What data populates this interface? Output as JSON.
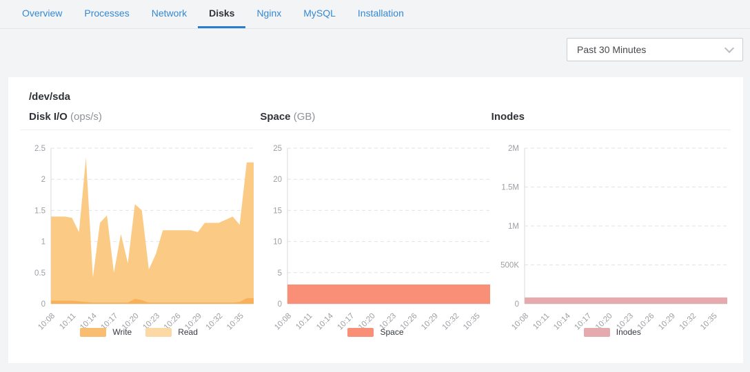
{
  "tabs": {
    "items": [
      {
        "label": "Overview",
        "active": false
      },
      {
        "label": "Processes",
        "active": false
      },
      {
        "label": "Network",
        "active": false
      },
      {
        "label": "Disks",
        "active": true
      },
      {
        "label": "Nginx",
        "active": false
      },
      {
        "label": "MySQL",
        "active": false
      },
      {
        "label": "Installation",
        "active": false
      }
    ]
  },
  "toolbar": {
    "time_range_selected": "Past 30 Minutes"
  },
  "panel": {
    "device_title": "/dev/sda"
  },
  "colors": {
    "tab_link": "#3488d1",
    "tab_active_underline": "#2a7dd1",
    "axis_line": "#d6d9dc",
    "grid_line": "#e0e2e5",
    "tick_text": "#9b9ea3",
    "page_background": "#f3f4f6",
    "card_background": "#ffffff"
  },
  "chart_data": [
    {
      "type": "area",
      "title": "Disk I/O",
      "unit": "(ops/s)",
      "x": [
        "10:08",
        "10:09",
        "10:10",
        "10:11",
        "10:12",
        "10:13",
        "10:14",
        "10:15",
        "10:16",
        "10:17",
        "10:18",
        "10:19",
        "10:20",
        "10:21",
        "10:22",
        "10:23",
        "10:24",
        "10:25",
        "10:26",
        "10:27",
        "10:28",
        "10:29",
        "10:30",
        "10:31",
        "10:32",
        "10:33",
        "10:34",
        "10:35",
        "10:36",
        "10:37"
      ],
      "x_tick_every": 3,
      "ylim": [
        0,
        2.5
      ],
      "yticks": [
        {
          "value": 0,
          "label": "0"
        },
        {
          "value": 0.5,
          "label": "0.5"
        },
        {
          "value": 1,
          "label": "1"
        },
        {
          "value": 1.5,
          "label": "1.5"
        },
        {
          "value": 2,
          "label": "2"
        },
        {
          "value": 2.5,
          "label": "2.5"
        }
      ],
      "series": [
        {
          "name": "Write",
          "color": "#f8b158",
          "legend_color": "#f9bd72",
          "values": [
            0.05,
            0.05,
            0.05,
            0.05,
            0.04,
            0.03,
            0.02,
            0.02,
            0.02,
            0.02,
            0.02,
            0.02,
            0.08,
            0.06,
            0.02,
            0.02,
            0.02,
            0.02,
            0.02,
            0.02,
            0.02,
            0.02,
            0.02,
            0.02,
            0.02,
            0.02,
            0.02,
            0.03,
            0.09,
            0.09
          ]
        },
        {
          "name": "Read",
          "color": "#fbca84",
          "legend_color": "#fcd9a4",
          "values": [
            1.4,
            1.4,
            1.4,
            1.38,
            1.15,
            2.35,
            0.42,
            1.3,
            1.42,
            0.5,
            1.12,
            0.65,
            1.6,
            1.5,
            0.55,
            0.8,
            1.18,
            1.18,
            1.18,
            1.18,
            1.18,
            1.15,
            1.3,
            1.3,
            1.3,
            1.35,
            1.4,
            1.27,
            2.27,
            2.27
          ]
        }
      ]
    },
    {
      "type": "area",
      "title": "Space",
      "unit": "(GB)",
      "x": [
        "10:08",
        "10:09",
        "10:10",
        "10:11",
        "10:12",
        "10:13",
        "10:14",
        "10:15",
        "10:16",
        "10:17",
        "10:18",
        "10:19",
        "10:20",
        "10:21",
        "10:22",
        "10:23",
        "10:24",
        "10:25",
        "10:26",
        "10:27",
        "10:28",
        "10:29",
        "10:30",
        "10:31",
        "10:32",
        "10:33",
        "10:34",
        "10:35",
        "10:36",
        "10:37"
      ],
      "x_tick_every": 3,
      "ylim": [
        0,
        25
      ],
      "yticks": [
        {
          "value": 0,
          "label": "0"
        },
        {
          "value": 5,
          "label": "5"
        },
        {
          "value": 10,
          "label": "10"
        },
        {
          "value": 15,
          "label": "15"
        },
        {
          "value": 20,
          "label": "20"
        },
        {
          "value": 25,
          "label": "25"
        }
      ],
      "series": [
        {
          "name": "Space",
          "color": "#f98f77",
          "legend_color": "#f98f77",
          "values": [
            3.1,
            3.1,
            3.1,
            3.1,
            3.1,
            3.1,
            3.1,
            3.1,
            3.1,
            3.1,
            3.1,
            3.1,
            3.1,
            3.1,
            3.1,
            3.1,
            3.1,
            3.1,
            3.1,
            3.1,
            3.1,
            3.1,
            3.1,
            3.1,
            3.1,
            3.1,
            3.1,
            3.1,
            3.1,
            3.1
          ]
        }
      ]
    },
    {
      "type": "area",
      "title": "Inodes",
      "unit": "",
      "x": [
        "10:08",
        "10:09",
        "10:10",
        "10:11",
        "10:12",
        "10:13",
        "10:14",
        "10:15",
        "10:16",
        "10:17",
        "10:18",
        "10:19",
        "10:20",
        "10:21",
        "10:22",
        "10:23",
        "10:24",
        "10:25",
        "10:26",
        "10:27",
        "10:28",
        "10:29",
        "10:30",
        "10:31",
        "10:32",
        "10:33",
        "10:34",
        "10:35",
        "10:36",
        "10:37"
      ],
      "x_tick_every": 3,
      "ylim": [
        0,
        2000000
      ],
      "yticks": [
        {
          "value": 0,
          "label": "0"
        },
        {
          "value": 500000,
          "label": "500K"
        },
        {
          "value": 1000000,
          "label": "1M"
        },
        {
          "value": 1500000,
          "label": "1.5M"
        },
        {
          "value": 2000000,
          "label": "2M"
        }
      ],
      "series": [
        {
          "name": "Inodes",
          "color": "#e5aaae",
          "legend_color": "#e5aaae",
          "values": [
            82000,
            82000,
            82000,
            82000,
            82000,
            82000,
            82000,
            82000,
            82000,
            82000,
            82000,
            82000,
            82000,
            82000,
            82000,
            82000,
            82000,
            82000,
            82000,
            82000,
            82000,
            82000,
            82000,
            82000,
            82000,
            82000,
            82000,
            82000,
            82000,
            82000
          ]
        }
      ]
    }
  ]
}
